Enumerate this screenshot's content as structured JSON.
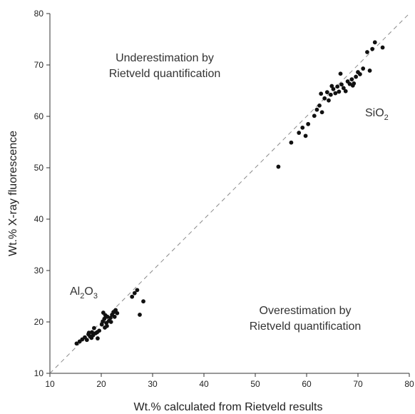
{
  "chart_data": {
    "type": "scatter",
    "xlabel": "Wt.% calculated from Rietveld results",
    "ylabel": "Wt.% X-ray fluorescence",
    "xlim": [
      10,
      80
    ],
    "ylim": [
      10,
      80
    ],
    "xticks": [
      10,
      20,
      30,
      40,
      50,
      60,
      70,
      80
    ],
    "yticks": [
      10,
      20,
      30,
      40,
      50,
      60,
      70,
      80
    ],
    "grid": false,
    "reference_line": {
      "style": "dashed",
      "from": [
        10,
        10
      ],
      "to": [
        80,
        80
      ]
    },
    "annotations": {
      "under_line1": "Underestimation by",
      "under_line2": "Rietveld quantification",
      "over_line1": "Overestimation by",
      "over_line2": "Rietveld quantification",
      "sio2_main": "SiO",
      "sio2_sub": "2",
      "al_main": "Al",
      "al_sub1": "2",
      "al_mid": "O",
      "al_sub2": "3"
    },
    "series": [
      {
        "marker_color": "#111111",
        "x": [
          15.2,
          15.8,
          16.3,
          16.8,
          17.2,
          17.5,
          17.8,
          18.2,
          18.6,
          18.1,
          18.9,
          19.3,
          19.6,
          20.1,
          20.3,
          20.6,
          20.8,
          21.0,
          21.2,
          21.5,
          21.8,
          22.1,
          22.4,
          22.8,
          23.1,
          20.4,
          21.1,
          21.9,
          20.7,
          22.6,
          19.2,
          18.4,
          17.6,
          26.0,
          26.5,
          27.0,
          27.5,
          28.2
        ],
        "y": [
          15.8,
          16.2,
          16.6,
          17.0,
          16.5,
          17.6,
          17.2,
          18.0,
          18.8,
          16.9,
          17.8,
          16.8,
          18.3,
          19.5,
          20.1,
          20.6,
          21.3,
          19.8,
          21.0,
          20.2,
          20.8,
          21.4,
          21.9,
          22.3,
          21.7,
          21.8,
          19.2,
          20.0,
          18.9,
          21.0,
          18.0,
          17.4,
          17.9,
          24.9,
          25.6,
          26.2,
          21.4,
          24.0
        ]
      },
      {
        "marker_color": "#111111",
        "x": [
          54.5,
          57.0,
          58.5,
          59.2,
          59.8,
          60.3,
          61.5,
          62.0,
          62.5,
          63.0,
          63.5,
          64.0,
          64.3,
          64.7,
          65.2,
          65.6,
          66.0,
          66.3,
          66.8,
          67.2,
          67.6,
          68.0,
          68.4,
          68.8,
          69.2,
          69.6,
          70.0,
          70.4,
          71.0,
          71.8,
          72.3,
          72.8,
          73.3,
          74.8,
          66.6,
          69.0,
          62.8,
          64.9
        ],
        "y": [
          50.2,
          54.9,
          56.8,
          57.8,
          56.2,
          58.5,
          60.1,
          61.3,
          62.1,
          60.8,
          63.5,
          64.7,
          63.1,
          64.2,
          65.3,
          64.5,
          65.8,
          64.8,
          66.2,
          65.5,
          64.9,
          66.8,
          66.3,
          67.2,
          66.4,
          67.7,
          68.6,
          68.2,
          69.3,
          72.5,
          68.9,
          73.1,
          74.4,
          73.4,
          68.3,
          66.0,
          64.4,
          65.9
        ]
      }
    ]
  }
}
